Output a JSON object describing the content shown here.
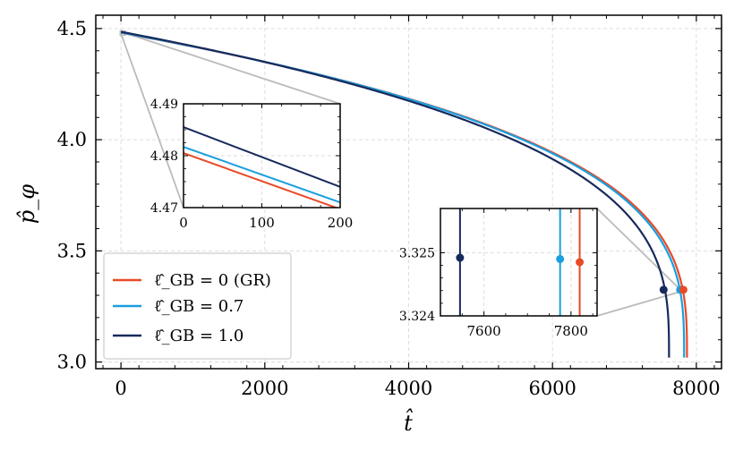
{
  "chart_data": {
    "type": "line",
    "xlabel": "t̂",
    "ylabel": "p̂_φ",
    "xlim": [
      -350,
      8350
    ],
    "ylim": [
      2.97,
      4.56
    ],
    "xticks": [
      0,
      2000,
      4000,
      6000,
      8000
    ],
    "xtick_labels": [
      "0",
      "2000",
      "4000",
      "6000",
      "8000"
    ],
    "yticks": [
      3.0,
      3.5,
      4.0,
      4.5
    ],
    "ytick_labels": [
      "3.0",
      "3.5",
      "4.0",
      "4.5"
    ],
    "grid": true,
    "legend_position": "lower-left",
    "series": [
      {
        "name": "GR",
        "legend_label": "ℓ̂_GB = 0 (GR)",
        "color": "#e84a27",
        "t_end": 7870,
        "p0": 4.481,
        "p_min": 3.02,
        "p_star": 3.3248,
        "t_star": 7820
      },
      {
        "name": "0.7",
        "legend_label": "ℓ̂_GB = 0.7",
        "color": "#1a9fe0",
        "t_end": 7830,
        "p0": 4.482,
        "p_min": 3.02,
        "p_star": 3.3248,
        "t_star": 7775
      },
      {
        "name": "1.0",
        "legend_label": "ℓ̂_GB = 1.0",
        "color": "#172a5c",
        "t_end": 7620,
        "p0": 4.4855,
        "p_min": 3.02,
        "p_star": 3.3248,
        "t_star": 7545
      }
    ],
    "inset_top": {
      "xlim": [
        0,
        200
      ],
      "ylim": [
        4.47,
        4.49
      ],
      "xticks": [
        0,
        100,
        200
      ],
      "xtick_labels": [
        "0",
        "100",
        "200"
      ],
      "yticks": [
        4.47,
        4.48,
        4.49
      ],
      "ytick_labels": [
        "4.47",
        "4.48",
        "4.49"
      ],
      "lines": [
        {
          "name": "GR",
          "y_start": 4.4805,
          "y_end": 4.4697
        },
        {
          "name": "0.7",
          "y_start": 4.4817,
          "y_end": 4.471
        },
        {
          "name": "1.0",
          "y_start": 4.4855,
          "y_end": 4.474
        }
      ]
    },
    "inset_bottom": {
      "xlim": [
        7500,
        7860
      ],
      "ylim": [
        3.324,
        3.3257
      ],
      "xticks": [
        7600,
        7800
      ],
      "xtick_labels": [
        "7600",
        "7800"
      ],
      "yticks": [
        3.324,
        3.325
      ],
      "ytick_labels": [
        "3.324",
        "3.325"
      ],
      "lines": [
        {
          "name": "GR",
          "t": 7820,
          "marker_p": 3.32485
        },
        {
          "name": "0.7",
          "t": 7775,
          "marker_p": 3.3249
        },
        {
          "name": "1.0",
          "t": 7545,
          "marker_p": 3.32492
        }
      ]
    }
  }
}
